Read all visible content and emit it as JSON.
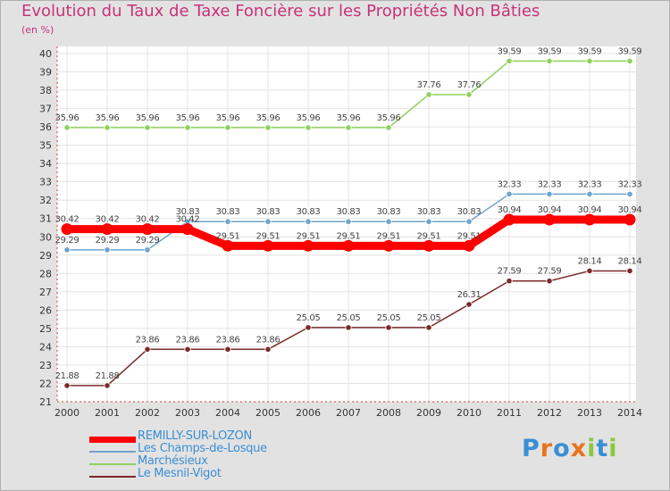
{
  "title": "Evolution du Taux de Taxe Foncière sur les Propriétés Non Bâties",
  "unit_label": "(en %)",
  "logo": {
    "letters": [
      "P",
      "r",
      "o",
      "x",
      "i",
      "t",
      "i"
    ],
    "colors": [
      "#3a8fd4",
      "#e8731e",
      "#3a8fd4",
      "#e8731e",
      "#8cc63f",
      "#3a8fd4",
      "#8cc63f"
    ]
  },
  "chart_data": {
    "type": "line",
    "title": "Evolution du Taux de Taxe Foncière sur les Propriétés Non Bâties",
    "ylabel": "(en %)",
    "xlabel": "",
    "ylim": [
      21,
      40
    ],
    "yticks": [
      "21",
      "22",
      "23",
      "24",
      "25",
      "26",
      "27",
      "28",
      "29",
      "30",
      "31",
      "32",
      "33",
      "34",
      "35",
      "36",
      "37",
      "38",
      "39",
      "40"
    ],
    "x": [
      "2000",
      "2001",
      "2002",
      "2003",
      "2004",
      "2005",
      "2006",
      "2007",
      "2008",
      "2009",
      "2010",
      "2011",
      "2012",
      "2013",
      "2014"
    ],
    "series": [
      {
        "name": "REMILLY-SUR-LOZON",
        "color": "#ff0000",
        "values": [
          30.42,
          30.42,
          30.42,
          30.42,
          29.51,
          29.51,
          29.51,
          29.51,
          29.51,
          29.51,
          29.51,
          30.94,
          30.94,
          30.94,
          30.94
        ],
        "labels": [
          "30.42",
          "30.42",
          "30.42",
          "30.42",
          "29.51",
          "29.51",
          "29.51",
          "29.51",
          "29.51",
          "29.51",
          "29.51",
          "30.94",
          "30.94",
          "30.94",
          "30.94"
        ]
      },
      {
        "name": "Les Champs-de-Losque",
        "color": "#6fa3d0",
        "values": [
          29.29,
          29.29,
          29.29,
          30.83,
          30.83,
          30.83,
          30.83,
          30.83,
          30.83,
          30.83,
          30.83,
          32.33,
          32.33,
          32.33,
          32.33
        ],
        "labels": [
          "29.29",
          "29.29",
          "29.29",
          "30.83",
          "30.83",
          "30.83",
          "30.83",
          "30.83",
          "30.83",
          "30.83",
          "30.83",
          "32.33",
          "32.33",
          "32.33",
          "32.33"
        ]
      },
      {
        "name": "Marchésieux",
        "color": "#8fd15c",
        "values": [
          35.96,
          35.96,
          35.96,
          35.96,
          35.96,
          35.96,
          35.96,
          35.96,
          35.96,
          37.76,
          37.76,
          39.59,
          39.59,
          39.59,
          39.59
        ],
        "labels": [
          "35.96",
          "35.96",
          "35.96",
          "35.96",
          "35.96",
          "35.96",
          "35.96",
          "35.96",
          "35.96",
          "37.76",
          "37.76",
          "39.59",
          "39.59",
          "39.59",
          "39.59"
        ]
      },
      {
        "name": "Le Mesnil-Vigot",
        "color": "#7a2a2a",
        "values": [
          21.88,
          21.88,
          23.86,
          23.86,
          23.86,
          23.86,
          25.05,
          25.05,
          25.05,
          25.05,
          26.31,
          27.59,
          27.59,
          28.14,
          28.14
        ],
        "labels": [
          "21.88",
          "21.88",
          "23.86",
          "23.86",
          "23.86",
          "23.86",
          "25.05",
          "25.05",
          "25.05",
          "25.05",
          "26.31",
          "27.59",
          "27.59",
          "28.14",
          "28.14"
        ]
      }
    ]
  }
}
